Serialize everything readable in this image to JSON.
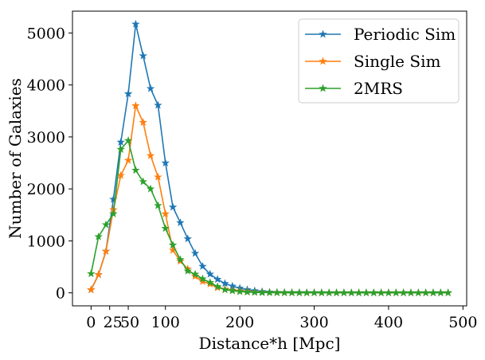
{
  "chart_data": {
    "type": "line",
    "xlabel": "Distance*h [Mpc]",
    "ylabel": "Number of Galaxies",
    "xlim": [
      -25,
      505
    ],
    "ylim": [
      -250,
      5420
    ],
    "xticks": [
      0,
      25,
      50,
      100,
      200,
      300,
      400,
      500
    ],
    "xtick_labels": [
      "0",
      "25",
      "50",
      "100",
      "200",
      "300",
      "400",
      "500"
    ],
    "yticks": [
      0,
      1000,
      2000,
      3000,
      4000,
      5000
    ],
    "ytick_labels": [
      "0",
      "1000",
      "2000",
      "3000",
      "4000",
      "5000"
    ],
    "grid": false,
    "legend_position": "top-right",
    "marker": "star",
    "x": [
      0,
      10,
      20,
      30,
      40,
      50,
      60,
      70,
      80,
      90,
      100,
      110,
      120,
      130,
      140,
      150,
      160,
      170,
      180,
      190,
      200,
      210,
      220,
      230,
      240,
      250,
      260,
      270,
      280,
      290,
      300,
      310,
      320,
      330,
      340,
      350,
      360,
      370,
      380,
      390,
      400,
      410,
      420,
      430,
      440,
      450,
      460,
      470,
      480
    ],
    "series": [
      {
        "name": "Periodic Sim",
        "color": "#1f77b4",
        "values": [
          60,
          350,
          800,
          1800,
          2900,
          3830,
          5170,
          4560,
          3930,
          3610,
          2500,
          1650,
          1350,
          1040,
          760,
          510,
          360,
          260,
          180,
          130,
          90,
          60,
          40,
          25,
          15,
          10,
          8,
          6,
          5,
          4,
          3,
          3,
          2,
          2,
          2,
          1,
          1,
          1,
          1,
          1,
          1,
          1,
          1,
          1,
          1,
          1,
          1,
          1,
          1
        ]
      },
      {
        "name": "Single Sim",
        "color": "#ff7f0e",
        "values": [
          60,
          350,
          800,
          1600,
          2260,
          2550,
          3600,
          3280,
          2640,
          2230,
          1520,
          820,
          610,
          460,
          320,
          220,
          170,
          100,
          70,
          50,
          35,
          25,
          15,
          10,
          6,
          4,
          3,
          2,
          2,
          1,
          1,
          1,
          1,
          1,
          1,
          1,
          1,
          1,
          1,
          1,
          1,
          1,
          1,
          1,
          1,
          1,
          1,
          1,
          1
        ]
      },
      {
        "name": "2MRS",
        "color": "#2ca02c",
        "values": [
          370,
          1080,
          1310,
          1520,
          2760,
          2930,
          2360,
          2140,
          2000,
          1680,
          1240,
          920,
          640,
          420,
          360,
          270,
          200,
          120,
          60,
          40,
          25,
          15,
          10,
          6,
          4,
          3,
          2,
          2,
          1,
          1,
          1,
          1,
          1,
          1,
          1,
          1,
          1,
          1,
          1,
          1,
          1,
          1,
          1,
          1,
          1,
          1,
          1,
          1,
          1
        ]
      }
    ]
  }
}
